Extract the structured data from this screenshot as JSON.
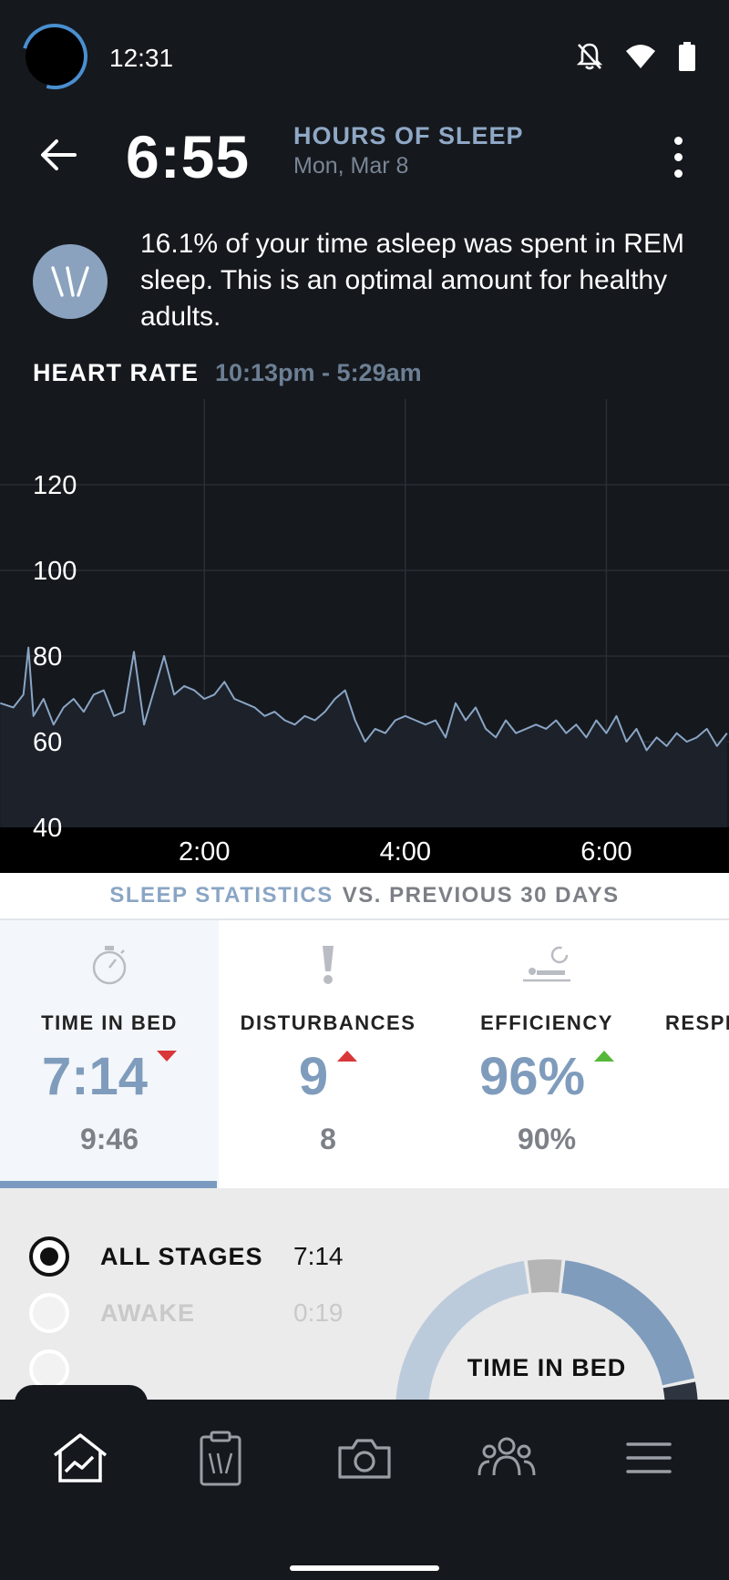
{
  "status_bar": {
    "time": "12:31"
  },
  "header": {
    "hours": "6:55",
    "label": "HOURS OF SLEEP",
    "date": "Mon, Mar 8"
  },
  "insight": {
    "text": "16.1% of your time asleep was spent in REM sleep. This is an optimal amount for healthy adults."
  },
  "heart_rate": {
    "title": "HEART RATE",
    "range": "10:13pm - 5:29am"
  },
  "chart_data": {
    "type": "line",
    "title": "",
    "xlabel": "",
    "ylabel": "",
    "ylim": [
      40,
      140
    ],
    "yticks": [
      40,
      60,
      80,
      100,
      120
    ],
    "ytick_labels": [
      "40",
      "60",
      "80",
      "100",
      "120"
    ],
    "xticks": [
      2,
      4,
      6
    ],
    "xtick_labels": [
      "2:00",
      "4:00",
      "6:00"
    ],
    "xlim": [
      -0.033,
      7.22
    ],
    "grid": true,
    "color": "#8aa5c4",
    "series": [
      {
        "x": [
          -0.03,
          0.1,
          0.2,
          0.25,
          0.3,
          0.4,
          0.5,
          0.6,
          0.7,
          0.8,
          0.9,
          1.0,
          1.1,
          1.2,
          1.3,
          1.4,
          1.5,
          1.6,
          1.7,
          1.8,
          1.9,
          2.0,
          2.1,
          2.2,
          2.3,
          2.4,
          2.5,
          2.6,
          2.7,
          2.8,
          2.9,
          3.0,
          3.1,
          3.2,
          3.3,
          3.4,
          3.5,
          3.6,
          3.7,
          3.8,
          3.9,
          4.0,
          4.1,
          4.2,
          4.3,
          4.4,
          4.5,
          4.6,
          4.7,
          4.8,
          4.9,
          5.0,
          5.1,
          5.2,
          5.3,
          5.4,
          5.5,
          5.6,
          5.7,
          5.8,
          5.9,
          6.0,
          6.1,
          6.2,
          6.3,
          6.4,
          6.5,
          6.6,
          6.7,
          6.8,
          6.9,
          7.0,
          7.1,
          7.2
        ],
        "values": [
          69,
          68,
          71,
          82,
          66,
          70,
          64,
          68,
          70,
          67,
          71,
          72,
          66,
          67,
          81,
          64,
          72,
          80,
          71,
          73,
          72,
          70,
          71,
          74,
          70,
          69,
          68,
          66,
          67,
          65,
          64,
          66,
          65,
          67,
          70,
          72,
          65,
          60,
          63,
          62,
          65,
          66,
          65,
          64,
          65,
          61,
          69,
          65,
          68,
          63,
          61,
          65,
          62,
          63,
          64,
          63,
          65,
          62,
          64,
          61,
          65,
          62,
          66,
          60,
          63,
          58,
          61,
          59,
          62,
          60,
          61,
          63,
          59,
          62
        ]
      }
    ]
  },
  "stats": {
    "title_a": "SLEEP STATISTICS",
    "title_b": "VS. PREVIOUS 30 DAYS",
    "cards": [
      {
        "label": "TIME IN BED",
        "value": "7:14",
        "prev": "9:46",
        "trend": "down",
        "trend_color": "#d9373a",
        "icon": "stopwatch-icon"
      },
      {
        "label": "DISTURBANCES",
        "value": "9",
        "prev": "8",
        "trend": "up",
        "trend_color": "#d9373a",
        "icon": "exclamation-icon"
      },
      {
        "label": "EFFICIENCY",
        "value": "96%",
        "prev": "90%",
        "trend": "up",
        "trend_color": "#55b83a",
        "icon": "sleeping-person-icon"
      },
      {
        "label": "RESPI",
        "icon": "respiratory-icon"
      }
    ]
  },
  "stages": {
    "items": [
      {
        "name": "ALL STAGES",
        "duration": "7:14",
        "selected": true
      },
      {
        "name": "AWAKE",
        "duration": "0:19",
        "selected": false
      }
    ],
    "donut_label": "TIME IN BED",
    "donut_fractions": [
      0.04,
      0.2,
      0.16,
      0.6
    ],
    "donut_colors": [
      "#b5b5b5",
      "#7f9cbc",
      "#2e3540",
      "#bccbdc"
    ]
  },
  "nav": {
    "items": [
      "home-icon",
      "journal-icon",
      "camera-icon",
      "community-icon",
      "menu-icon"
    ]
  }
}
